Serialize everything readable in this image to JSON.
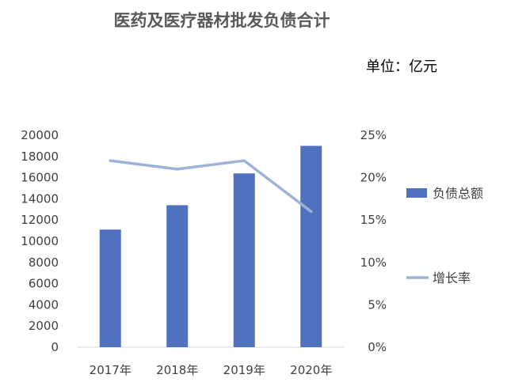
{
  "chart_data": {
    "type": "bar",
    "title": "医药及医疗器材批发负债合计",
    "unit_label": "单位：亿元",
    "categories": [
      "2017年",
      "2018年",
      "2019年",
      "2020年"
    ],
    "series": [
      {
        "name": "负债总额",
        "kind": "bar",
        "axis": "left",
        "values": [
          11100,
          13400,
          16400,
          19000
        ],
        "color": "#4f71be"
      },
      {
        "name": "增长率",
        "kind": "line",
        "axis": "right",
        "values": [
          0.22,
          0.21,
          0.22,
          0.16
        ],
        "color": "#9cb4d8"
      }
    ],
    "y_left": {
      "min": 0,
      "max": 20000,
      "ticks": [
        0,
        2000,
        4000,
        6000,
        8000,
        10000,
        12000,
        14000,
        16000,
        18000,
        20000
      ]
    },
    "y_right": {
      "min": 0,
      "max": 0.25,
      "ticks": [
        "0%",
        "5%",
        "10%",
        "15%",
        "20%",
        "25%"
      ]
    },
    "legend_position": "right",
    "grid": false
  }
}
